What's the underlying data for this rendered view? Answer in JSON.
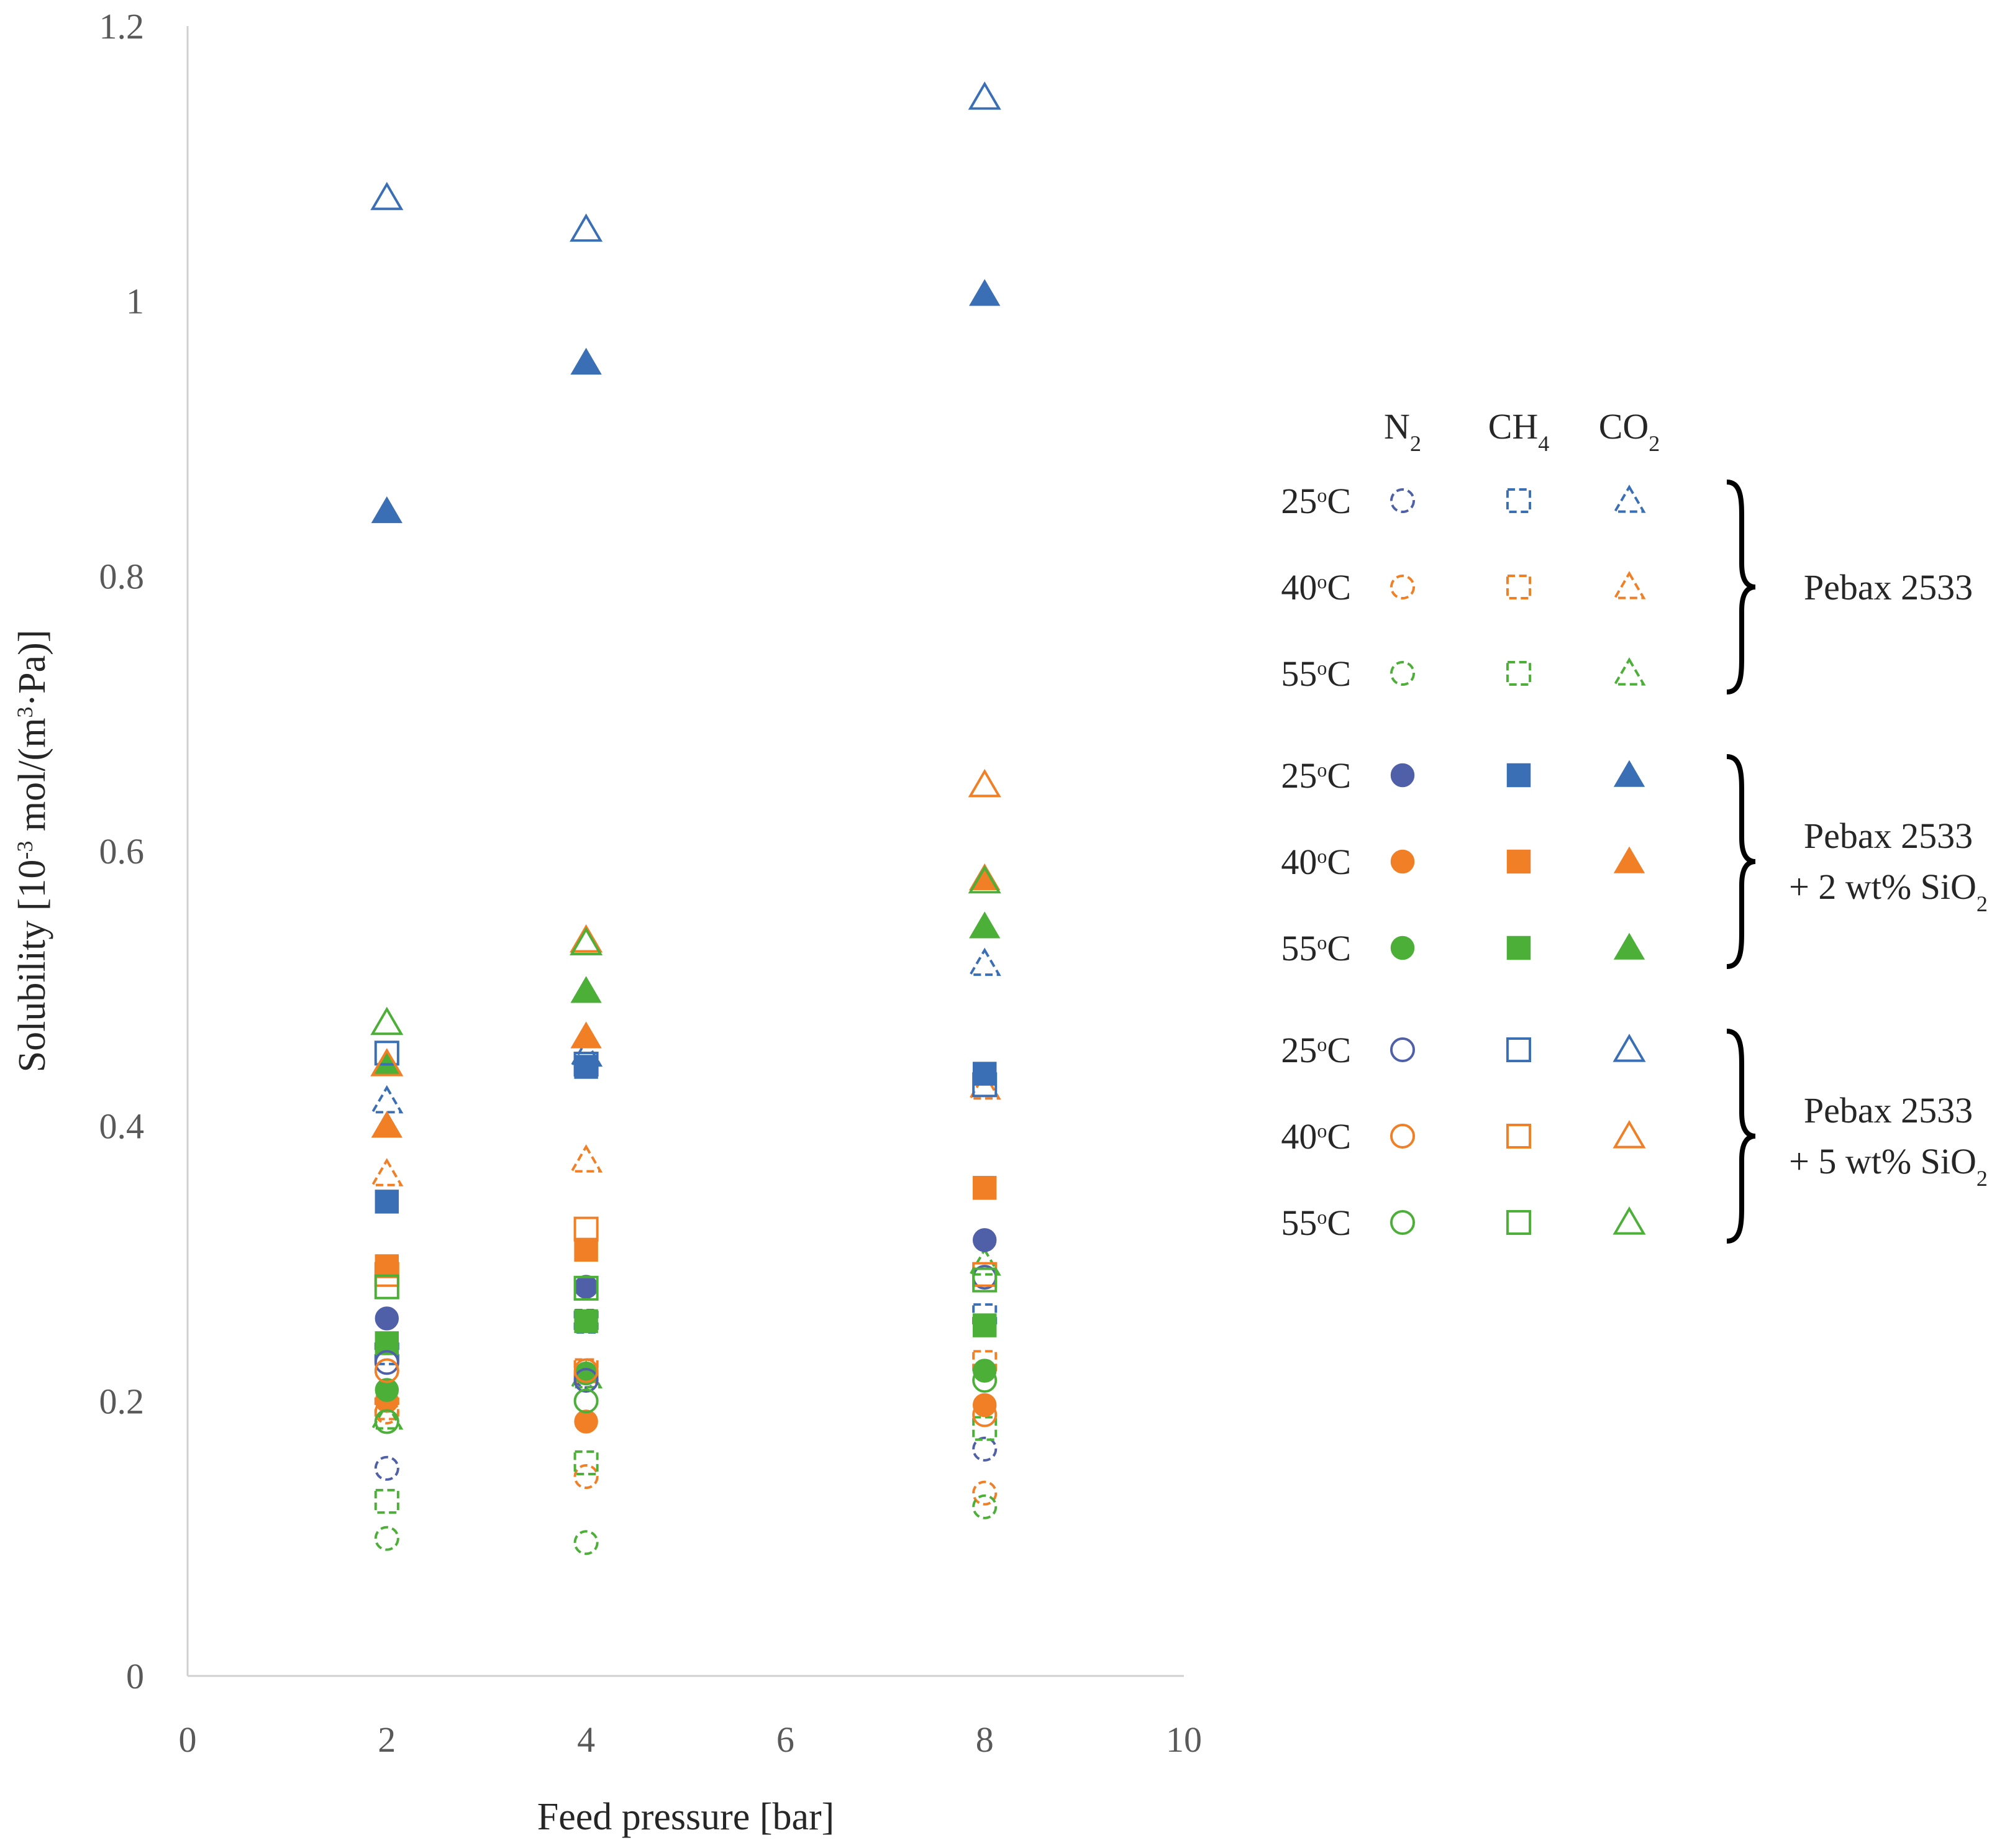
{
  "chart_data": {
    "type": "scatter",
    "title": "",
    "xlabel": "Feed pressure [bar]",
    "ylabel": {
      "pre": "Solubility [10",
      "exp": "-3",
      "mid": " mol/(m",
      "exp2": "3",
      "post": "·Pa)]"
    },
    "xlim": [
      0,
      10
    ],
    "ylim": [
      0,
      1.2
    ],
    "xticks": [
      "0",
      "2",
      "4",
      "6",
      "8",
      "10"
    ],
    "yticks": [
      "0",
      "0.2",
      "0.4",
      "0.6",
      "0.8",
      "1",
      "1.2"
    ],
    "x": [
      2,
      4,
      8
    ],
    "colors": {
      "25": "#3a6fb5",
      "40": "#f07f26",
      "55": "#4caf38",
      "n2_25": "#5060a8"
    },
    "series": [
      {
        "name": "Pebax 2533 N2 25°C",
        "gas": "N2",
        "temp": "25",
        "style": "dashed",
        "values": [
          0.151,
          0.218,
          0.165
        ]
      },
      {
        "name": "Pebax 2533 CH4 25°C",
        "gas": "CH4",
        "temp": "25",
        "style": "dashed",
        "values": [
          0.235,
          0.258,
          0.262
        ]
      },
      {
        "name": "Pebax 2533 CO2 25°C",
        "gas": "CO2",
        "temp": "25",
        "style": "dashed",
        "values": [
          0.418,
          0.452,
          0.518
        ]
      },
      {
        "name": "Pebax 2533 N2 40°C",
        "gas": "N2",
        "temp": "40",
        "style": "dashed",
        "values": [
          0.192,
          0.145,
          0.133
        ]
      },
      {
        "name": "Pebax 2533 CH4 40°C",
        "gas": "CH4",
        "temp": "40",
        "style": "dashed",
        "values": [
          0.195,
          0.222,
          0.228
        ]
      },
      {
        "name": "Pebax 2533 CO2 40°C",
        "gas": "CO2",
        "temp": "40",
        "style": "dashed",
        "values": [
          0.365,
          0.375,
          0.428
        ]
      },
      {
        "name": "Pebax 2533 N2 55°C",
        "gas": "N2",
        "temp": "55",
        "style": "dashed",
        "values": [
          0.1,
          0.097,
          0.123
        ]
      },
      {
        "name": "Pebax 2533 CH4 55°C",
        "gas": "CH4",
        "temp": "55",
        "style": "dashed",
        "values": [
          0.127,
          0.155,
          0.18
        ]
      },
      {
        "name": "Pebax 2533 CO2 55°C",
        "gas": "CO2",
        "temp": "55",
        "style": "dashed",
        "values": [
          0.188,
          0.218,
          0.3
        ]
      },
      {
        "name": "Pebax 2533 + 2 wt% SiO2 N2 25°C",
        "gas": "N2",
        "temp": "25",
        "style": "filled",
        "values": [
          0.26,
          0.283,
          0.317
        ]
      },
      {
        "name": "Pebax 2533 + 2 wt% SiO2 CH4 25°C",
        "gas": "CH4",
        "temp": "25",
        "style": "filled",
        "values": [
          0.345,
          0.443,
          0.438
        ]
      },
      {
        "name": "Pebax 2533 + 2 wt% SiO2 CO2 25°C",
        "gas": "CO2",
        "temp": "25",
        "style": "filled",
        "values": [
          0.847,
          0.955,
          1.005
        ]
      },
      {
        "name": "Pebax 2533 + 2 wt% SiO2 N2 40°C",
        "gas": "N2",
        "temp": "40",
        "style": "filled",
        "values": [
          0.2,
          0.185,
          0.197
        ]
      },
      {
        "name": "Pebax 2533 + 2 wt% SiO2 CH4 40°C",
        "gas": "CH4",
        "temp": "40",
        "style": "filled",
        "values": [
          0.298,
          0.31,
          0.355
        ]
      },
      {
        "name": "Pebax 2533 + 2 wt% SiO2 CO2 40°C",
        "gas": "CO2",
        "temp": "40",
        "style": "filled",
        "values": [
          0.4,
          0.465,
          0.58
        ]
      },
      {
        "name": "Pebax 2533 + 2 wt% SiO2 N2 55°C",
        "gas": "N2",
        "temp": "55",
        "style": "filled",
        "values": [
          0.208,
          0.22,
          0.222
        ]
      },
      {
        "name": "Pebax 2533 + 2 wt% SiO2 CH4 55°C",
        "gas": "CH4",
        "temp": "55",
        "style": "filled",
        "values": [
          0.242,
          0.258,
          0.255
        ]
      },
      {
        "name": "Pebax 2533 + 2 wt% SiO2 CO2 55°C",
        "gas": "CO2",
        "temp": "55",
        "style": "filled",
        "values": [
          0.445,
          0.498,
          0.545
        ]
      },
      {
        "name": "Pebax 2533 + 5 wt% SiO2 N2 25°C",
        "gas": "N2",
        "temp": "25",
        "style": "hollow",
        "values": [
          0.228,
          0.215,
          0.29
        ]
      },
      {
        "name": "Pebax 2533 + 5 wt% SiO2 CH4 25°C",
        "gas": "CH4",
        "temp": "25",
        "style": "hollow",
        "values": [
          0.453,
          0.445,
          0.43
        ]
      },
      {
        "name": "Pebax 2533 + 5 wt% SiO2 CO2 25°C",
        "gas": "CO2",
        "temp": "25",
        "style": "hollow",
        "values": [
          1.075,
          1.052,
          1.148
        ]
      },
      {
        "name": "Pebax 2533 + 5 wt% SiO2 N2 40°C",
        "gas": "N2",
        "temp": "40",
        "style": "hollow",
        "values": [
          0.222,
          0.222,
          0.19
        ]
      },
      {
        "name": "Pebax 2533 + 5 wt% SiO2 CH4 40°C",
        "gas": "CH4",
        "temp": "40",
        "style": "hollow",
        "values": [
          0.292,
          0.325,
          0.292
        ]
      },
      {
        "name": "Pebax 2533 + 5 wt% SiO2 CO2 40°C",
        "gas": "CO2",
        "temp": "40",
        "style": "hollow",
        "values": [
          0.445,
          0.535,
          0.648
        ]
      },
      {
        "name": "Pebax 2533 + 5 wt% SiO2 N2 55°C",
        "gas": "N2",
        "temp": "55",
        "style": "hollow",
        "values": [
          0.185,
          0.2,
          0.215
        ]
      },
      {
        "name": "Pebax 2533 + 5 wt% SiO2 CH4 55°C",
        "gas": "CH4",
        "temp": "55",
        "style": "hollow",
        "values": [
          0.283,
          0.282,
          0.288
        ]
      },
      {
        "name": "Pebax 2533 + 5 wt% SiO2 CO2 55°C",
        "gas": "CO2",
        "temp": "55",
        "style": "hollow",
        "values": [
          0.475,
          0.533,
          0.578
        ]
      }
    ]
  },
  "legend": {
    "columns": [
      {
        "base": "N",
        "sub": "2"
      },
      {
        "base": "CH",
        "sub": "4"
      },
      {
        "base": "CO",
        "sub": "2"
      }
    ],
    "temp_rows": [
      {
        "num": "25",
        "sup": "o",
        "unit": "C",
        "key": "25"
      },
      {
        "num": "40",
        "sup": "o",
        "unit": "C",
        "key": "40"
      },
      {
        "num": "55",
        "sup": "o",
        "unit": "C",
        "key": "55"
      }
    ],
    "groups": [
      {
        "style": "dashed",
        "line1": "Pebax 2533",
        "line2_pre": "",
        "line2_sub": ""
      },
      {
        "style": "filled",
        "line1": "Pebax 2533",
        "line2_pre": "+ 2 wt% SiO",
        "line2_sub": "2"
      },
      {
        "style": "hollow",
        "line1": "Pebax 2533",
        "line2_pre": "+ 5 wt% SiO",
        "line2_sub": "2"
      }
    ]
  }
}
